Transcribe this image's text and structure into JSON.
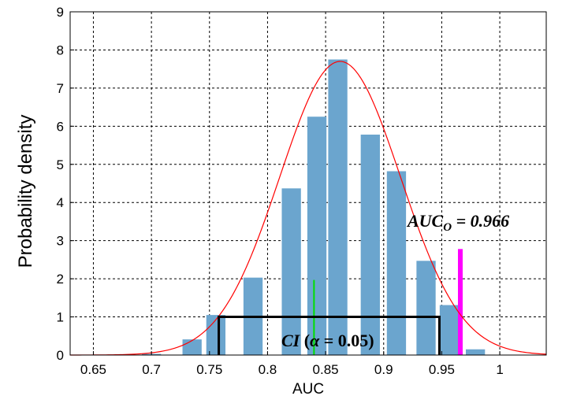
{
  "chart_data": {
    "type": "bar",
    "xlabel": "AUC",
    "ylabel": "Probability density",
    "xlim": [
      0.63,
      1.04
    ],
    "ylim": [
      0,
      9
    ],
    "grid": true,
    "x_ticks": [
      "0.65",
      "0.7",
      "0.75",
      "0.8",
      "0.85",
      "0.9",
      "0.95",
      "1"
    ],
    "y_ticks": [
      "0",
      "1",
      "2",
      "3",
      "4",
      "5",
      "6",
      "7",
      "8",
      "9"
    ],
    "bar_width": 0.0165,
    "bar_color": "#6ba5ce",
    "bars": [
      {
        "x": 0.7,
        "value": 0.03
      },
      {
        "x": 0.735,
        "value": 0.41
      },
      {
        "x": 0.7555,
        "value": 1.05
      },
      {
        "x": 0.7875,
        "value": 2.03
      },
      {
        "x": 0.8205,
        "value": 4.37
      },
      {
        "x": 0.8425,
        "value": 6.25
      },
      {
        "x": 0.8605,
        "value": 7.75
      },
      {
        "x": 0.8885,
        "value": 5.78
      },
      {
        "x": 0.911,
        "value": 4.82
      },
      {
        "x": 0.9365,
        "value": 2.47
      },
      {
        "x": 0.9565,
        "value": 1.31
      },
      {
        "x": 0.979,
        "value": 0.15
      }
    ],
    "fit_curve": {
      "color": "#ff0000",
      "mean": 0.8625,
      "peak": 7.7,
      "sigma": 0.052,
      "x_range": [
        0.63,
        1.04
      ]
    },
    "ci_box": {
      "x_start": 0.758,
      "x_end": 0.948,
      "height": 1.0,
      "color": "#000000"
    },
    "green_marker": {
      "x": 0.84,
      "height": 1.97,
      "color": "#00e000"
    },
    "observed_marker": {
      "x": 0.966,
      "height": 2.78,
      "color": "#ff00ff"
    },
    "annotations": {
      "auc_observed": {
        "base": "AUC",
        "sub": "O",
        "rest": " = 0.966"
      },
      "ci": {
        "prefix": "CI",
        "open": " (",
        "alpha": "α",
        "rest": " = 0.05)"
      }
    }
  }
}
